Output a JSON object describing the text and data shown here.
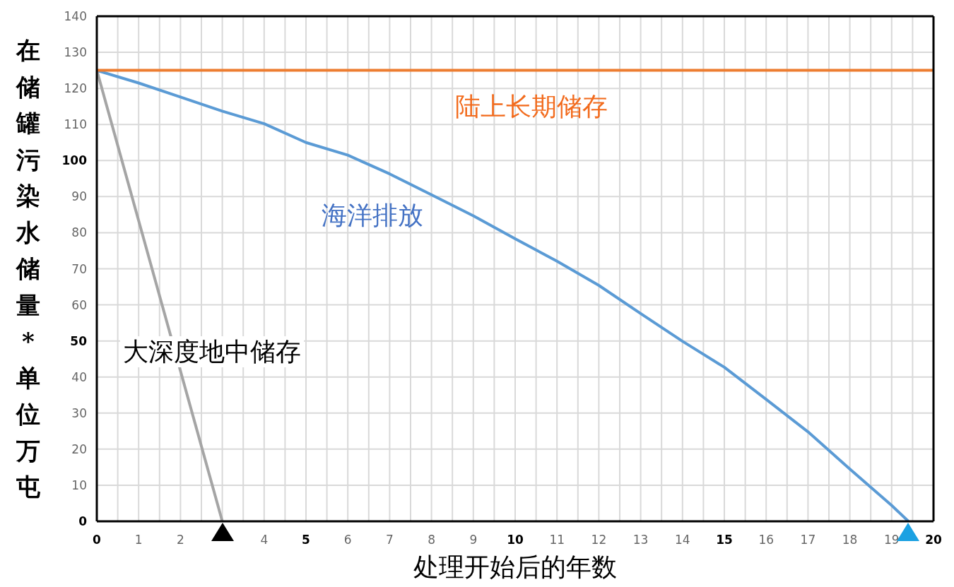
{
  "chart_data": {
    "type": "line",
    "xlabel": "处理开始后的年数",
    "ylabel": "在储罐污染水储量*单位万屯",
    "xlim": [
      0,
      20
    ],
    "ylim": [
      0,
      140
    ],
    "xticks": [
      0,
      {
        "value": 0.5,
        "label": null
      },
      1,
      {
        "value": 1.5,
        "label": null
      },
      2,
      {
        "value": 2.5,
        "label": null
      },
      {
        "value": 3,
        "label": null
      },
      {
        "value": 3.5,
        "label": null
      },
      4,
      {
        "value": 4.5,
        "label": null
      },
      5,
      {
        "value": 5.5,
        "label": null
      },
      6,
      {
        "value": 6.5,
        "label": null
      },
      7,
      {
        "value": 7.5,
        "label": null
      },
      8,
      {
        "value": 8.5,
        "label": null
      },
      9,
      {
        "value": 9.5,
        "label": null
      },
      10,
      {
        "value": 10.5,
        "label": null
      },
      11,
      {
        "value": 11.5,
        "label": null
      },
      12,
      {
        "value": 12.5,
        "label": null
      },
      13,
      {
        "value": 13.5,
        "label": null
      },
      14,
      {
        "value": 14.5,
        "label": null
      },
      15,
      {
        "value": 15.5,
        "label": null
      },
      16,
      {
        "value": 16.5,
        "label": null
      },
      17,
      {
        "value": 17.5,
        "label": null
      },
      18,
      {
        "value": 18.5,
        "label": null
      },
      19,
      {
        "value": 19.5,
        "label": null
      },
      20
    ],
    "yticks": [
      0,
      10,
      20,
      30,
      40,
      50,
      60,
      70,
      80,
      90,
      100,
      110,
      120,
      130,
      140
    ],
    "grid": true,
    "marker": "none",
    "line_style": "solid",
    "series": [
      {
        "name": "大深度地中储存",
        "color": "#a5a5a5",
        "x": [
          0,
          3
        ],
        "values": [
          125,
          0
        ]
      },
      {
        "name": "海洋排放",
        "color": "#5b9bd5",
        "x": [
          0,
          1,
          2,
          3,
          4,
          5,
          6,
          7,
          8,
          9,
          10,
          11,
          12,
          13,
          14,
          15,
          16,
          17,
          18,
          19,
          19.4
        ],
        "values": [
          125,
          121.5,
          117.6,
          113.7,
          110.2,
          105,
          101.5,
          96.3,
          90.5,
          84.7,
          78.3,
          72.1,
          65.4,
          57.6,
          49.9,
          42.7,
          33.8,
          24.8,
          14.5,
          4.4,
          0
        ]
      },
      {
        "name": "陆上长期储存",
        "color": "#ed7d31",
        "x": [
          0,
          20
        ],
        "values": [
          125,
          125
        ]
      }
    ]
  }
}
